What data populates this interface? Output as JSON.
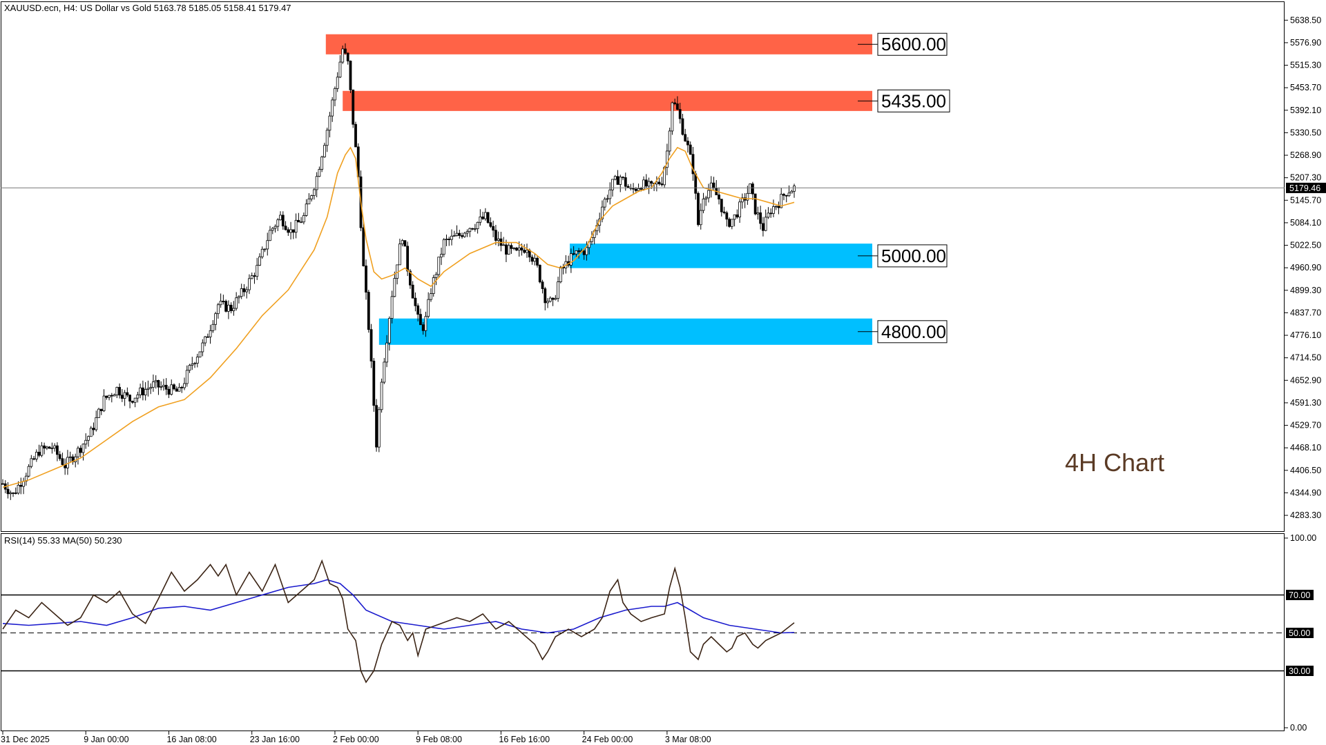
{
  "header": {
    "symbol_info": "XAUUSD.ecn, H4:  US Dollar vs Gold  5163.78 5185.05 5158.41 5179.47",
    "chart_note": "4H Chart"
  },
  "indicator": {
    "label": "RSI(14) 55.33 MA(50) 50.230"
  },
  "chart_data": [
    {
      "type": "candlestick",
      "title": "XAUUSD.ecn, H4:  US Dollar vs Gold  5163.78 5185.05 5158.41 5179.47",
      "price_ticks": [
        "5638.50",
        "5576.90",
        "5515.30",
        "5453.70",
        "5392.10",
        "5330.50",
        "5268.90",
        "5207.30",
        "5145.70",
        "5084.10",
        "5022.50",
        "4960.90",
        "4899.30",
        "4837.70",
        "4776.10",
        "4714.50",
        "4652.90",
        "4591.30",
        "4529.70",
        "4468.10",
        "4406.50",
        "4344.90",
        "4283.30"
      ],
      "ylim": [
        4240,
        5690
      ],
      "current_price": "5179.46",
      "time_labels": [
        "31 Dec 2025",
        "9 Jan 00:00",
        "16 Jan 08:00",
        "23 Jan 16:00",
        "2 Feb 00:00",
        "9 Feb 08:00",
        "16 Feb 16:00",
        "24 Feb 00:00",
        "3 Mar 08:00"
      ],
      "ma_color": "#f0a020",
      "price_path": [
        [
          0,
          4370
        ],
        [
          8,
          4340
        ],
        [
          18,
          4400
        ],
        [
          28,
          4460
        ],
        [
          38,
          4470
        ],
        [
          48,
          4420
        ],
        [
          58,
          4460
        ],
        [
          68,
          4510
        ],
        [
          78,
          4600
        ],
        [
          88,
          4630
        ],
        [
          98,
          4600
        ],
        [
          106,
          4620
        ],
        [
          116,
          4640
        ],
        [
          126,
          4630
        ],
        [
          136,
          4620
        ],
        [
          146,
          4700
        ],
        [
          156,
          4760
        ],
        [
          166,
          4860
        ],
        [
          176,
          4850
        ],
        [
          186,
          4900
        ],
        [
          196,
          4960
        ],
        [
          206,
          5060
        ],
        [
          214,
          5100
        ],
        [
          222,
          5060
        ],
        [
          232,
          5100
        ],
        [
          242,
          5210
        ],
        [
          250,
          5340
        ],
        [
          258,
          5490
        ],
        [
          262,
          5560
        ],
        [
          266,
          5520
        ],
        [
          270,
          5360
        ],
        [
          274,
          5210
        ],
        [
          278,
          4960
        ],
        [
          282,
          4800
        ],
        [
          285,
          4640
        ],
        [
          288,
          4480
        ],
        [
          292,
          4660
        ],
        [
          296,
          4770
        ],
        [
          300,
          4890
        ],
        [
          304,
          4980
        ],
        [
          308,
          5050
        ],
        [
          312,
          4960
        ],
        [
          316,
          4890
        ],
        [
          320,
          4820
        ],
        [
          323,
          4790
        ],
        [
          326,
          4820
        ],
        [
          330,
          4900
        ],
        [
          334,
          4950
        ],
        [
          340,
          5030
        ],
        [
          346,
          5040
        ],
        [
          352,
          5050
        ],
        [
          358,
          5070
        ],
        [
          364,
          5080
        ],
        [
          372,
          5100
        ],
        [
          380,
          5040
        ],
        [
          388,
          5010
        ],
        [
          396,
          5000
        ],
        [
          404,
          5020
        ],
        [
          412,
          4960
        ],
        [
          418,
          4880
        ],
        [
          424,
          4860
        ],
        [
          430,
          4950
        ],
        [
          436,
          4980
        ],
        [
          442,
          5000
        ],
        [
          450,
          5010
        ],
        [
          456,
          5060
        ],
        [
          462,
          5130
        ],
        [
          470,
          5190
        ],
        [
          476,
          5210
        ],
        [
          484,
          5170
        ],
        [
          492,
          5190
        ],
        [
          500,
          5180
        ],
        [
          508,
          5200
        ],
        [
          512,
          5280
        ],
        [
          516,
          5420
        ],
        [
          520,
          5390
        ],
        [
          524,
          5340
        ],
        [
          528,
          5290
        ],
        [
          532,
          5230
        ],
        [
          536,
          5080
        ],
        [
          540,
          5160
        ],
        [
          546,
          5180
        ],
        [
          552,
          5150
        ],
        [
          558,
          5080
        ],
        [
          564,
          5100
        ],
        [
          570,
          5140
        ],
        [
          576,
          5180
        ],
        [
          580,
          5120
        ],
        [
          586,
          5070
        ],
        [
          592,
          5120
        ],
        [
          598,
          5140
        ],
        [
          604,
          5170
        ],
        [
          610,
          5179.47
        ]
      ],
      "ma_path": [
        [
          0,
          4360
        ],
        [
          20,
          4380
        ],
        [
          40,
          4410
        ],
        [
          60,
          4440
        ],
        [
          80,
          4490
        ],
        [
          100,
          4540
        ],
        [
          120,
          4580
        ],
        [
          140,
          4600
        ],
        [
          160,
          4660
        ],
        [
          180,
          4740
        ],
        [
          200,
          4830
        ],
        [
          220,
          4900
        ],
        [
          240,
          5010
        ],
        [
          250,
          5100
        ],
        [
          258,
          5220
        ],
        [
          264,
          5270
        ],
        [
          268,
          5290
        ],
        [
          272,
          5260
        ],
        [
          276,
          5140
        ],
        [
          280,
          5040
        ],
        [
          286,
          4950
        ],
        [
          292,
          4930
        ],
        [
          300,
          4940
        ],
        [
          310,
          4960
        ],
        [
          320,
          4930
        ],
        [
          330,
          4910
        ],
        [
          340,
          4950
        ],
        [
          360,
          5000
        ],
        [
          380,
          5030
        ],
        [
          396,
          5030
        ],
        [
          410,
          5000
        ],
        [
          420,
          4970
        ],
        [
          430,
          4960
        ],
        [
          440,
          4980
        ],
        [
          450,
          5020
        ],
        [
          460,
          5090
        ],
        [
          470,
          5130
        ],
        [
          480,
          5150
        ],
        [
          490,
          5170
        ],
        [
          500,
          5180
        ],
        [
          508,
          5220
        ],
        [
          514,
          5260
        ],
        [
          520,
          5290
        ],
        [
          526,
          5280
        ],
        [
          532,
          5230
        ],
        [
          540,
          5180
        ],
        [
          550,
          5170
        ],
        [
          560,
          5160
        ],
        [
          570,
          5150
        ],
        [
          580,
          5150
        ],
        [
          590,
          5140
        ],
        [
          600,
          5130
        ],
        [
          610,
          5140
        ]
      ],
      "zones": [
        {
          "label": "5600.00",
          "top": 5600,
          "bottom": 5545,
          "start_x": 249,
          "color": "#ff6347"
        },
        {
          "label": "5435.00",
          "top": 5445,
          "bottom": 5390,
          "start_x": 262,
          "color": "#ff6347"
        },
        {
          "label": "5000.00",
          "top": 5027,
          "bottom": 4960,
          "start_x": 437,
          "color": "#00bfff"
        },
        {
          "label": "4800.00",
          "top": 4822,
          "bottom": 4750,
          "start_x": 290,
          "color": "#00bfff"
        }
      ]
    },
    {
      "type": "line",
      "title": "RSI(14) 55.33 MA(50) 50.230",
      "ylim": [
        0,
        100
      ],
      "levels": [
        30,
        50,
        70
      ],
      "tick_labels": [
        "100.00",
        "70.00",
        "50.00",
        "30.00",
        "0.00"
      ],
      "rsi_color": "#3b2415",
      "ma_color": "#1a1acd",
      "series": [
        {
          "values": [
            [
              0,
              52
            ],
            [
              10,
              62
            ],
            [
              20,
              58
            ],
            [
              30,
              66
            ],
            [
              40,
              60
            ],
            [
              50,
              54
            ],
            [
              60,
              58
            ],
            [
              70,
              70
            ],
            [
              80,
              66
            ],
            [
              90,
              72
            ],
            [
              100,
              60
            ],
            [
              110,
              55
            ],
            [
              120,
              68
            ],
            [
              130,
              82
            ],
            [
              140,
              72
            ],
            [
              150,
              78
            ],
            [
              160,
              86
            ],
            [
              166,
              80
            ],
            [
              172,
              86
            ],
            [
              180,
              70
            ],
            [
              190,
              82
            ],
            [
              200,
              72
            ],
            [
              210,
              86
            ],
            [
              220,
              66
            ],
            [
              230,
              72
            ],
            [
              240,
              78
            ],
            [
              246,
              88
            ],
            [
              252,
              76
            ],
            [
              258,
              74
            ],
            [
              262,
              68
            ],
            [
              266,
              52
            ],
            [
              272,
              46
            ],
            [
              276,
              30
            ],
            [
              280,
              24
            ],
            [
              286,
              30
            ],
            [
              292,
              44
            ],
            [
              300,
              56
            ],
            [
              306,
              54
            ],
            [
              312,
              46
            ],
            [
              316,
              50
            ],
            [
              320,
              38
            ],
            [
              326,
              52
            ],
            [
              334,
              54
            ],
            [
              342,
              56
            ],
            [
              350,
              58
            ],
            [
              360,
              56
            ],
            [
              370,
              60
            ],
            [
              380,
              52
            ],
            [
              390,
              56
            ],
            [
              400,
              50
            ],
            [
              410,
              44
            ],
            [
              416,
              36
            ],
            [
              420,
              40
            ],
            [
              426,
              48
            ],
            [
              436,
              52
            ],
            [
              446,
              48
            ],
            [
              456,
              52
            ],
            [
              462,
              58
            ],
            [
              468,
              72
            ],
            [
              474,
              78
            ],
            [
              478,
              66
            ],
            [
              484,
              60
            ],
            [
              492,
              56
            ],
            [
              500,
              58
            ],
            [
              510,
              60
            ],
            [
              514,
              74
            ],
            [
              518,
              84
            ],
            [
              522,
              74
            ],
            [
              526,
              58
            ],
            [
              530,
              40
            ],
            [
              536,
              36
            ],
            [
              540,
              44
            ],
            [
              546,
              48
            ],
            [
              552,
              44
            ],
            [
              558,
              40
            ],
            [
              562,
              42
            ],
            [
              566,
              48
            ],
            [
              572,
              50
            ],
            [
              578,
              44
            ],
            [
              582,
              42
            ],
            [
              588,
              46
            ],
            [
              594,
              48
            ],
            [
              600,
              50
            ],
            [
              610,
              55.33
            ]
          ]
        },
        {
          "values": [
            [
              0,
              55
            ],
            [
              20,
              54
            ],
            [
              40,
              55
            ],
            [
              60,
              56
            ],
            [
              80,
              54
            ],
            [
              100,
              58
            ],
            [
              120,
              63
            ],
            [
              140,
              64
            ],
            [
              160,
              62
            ],
            [
              180,
              66
            ],
            [
              200,
              70
            ],
            [
              220,
              74
            ],
            [
              240,
              76
            ],
            [
              250,
              78
            ],
            [
              260,
              76
            ],
            [
              270,
              70
            ],
            [
              280,
              62
            ],
            [
              300,
              56
            ],
            [
              320,
              54
            ],
            [
              340,
              52
            ],
            [
              360,
              54
            ],
            [
              380,
              56
            ],
            [
              400,
              52
            ],
            [
              420,
              50
            ],
            [
              440,
              52
            ],
            [
              460,
              58
            ],
            [
              480,
              62
            ],
            [
              500,
              64
            ],
            [
              510,
              64
            ],
            [
              520,
              66
            ],
            [
              530,
              62
            ],
            [
              540,
              58
            ],
            [
              560,
              54
            ],
            [
              580,
              52
            ],
            [
              600,
              50
            ],
            [
              610,
              50.23
            ]
          ]
        }
      ]
    }
  ]
}
